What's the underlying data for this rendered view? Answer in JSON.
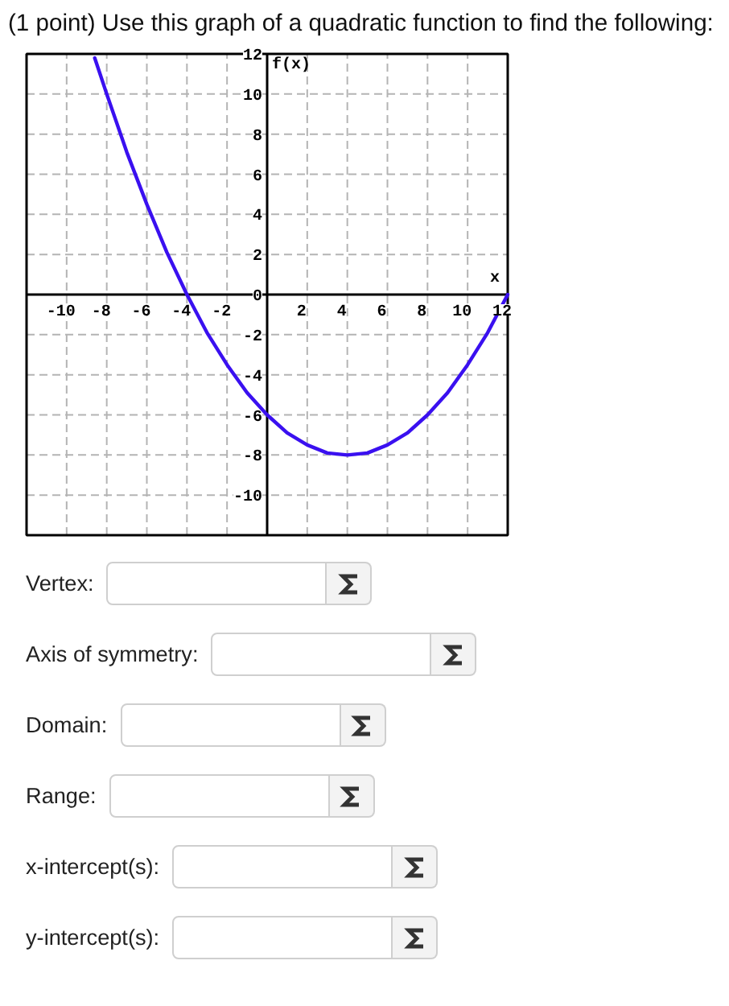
{
  "chart_data": {
    "type": "line",
    "title": "(1 point) Use this graph of a quadratic function to find the following:",
    "xlabel": "x",
    "ylabel": "f(x)",
    "x": [
      -8.6,
      -8,
      -7,
      -6,
      -5,
      -4,
      -3,
      -2,
      -1,
      0,
      1,
      2,
      3,
      4,
      5,
      6,
      7,
      8,
      9,
      10,
      11,
      12
    ],
    "series": [
      {
        "color": "#3a10f0",
        "values": [
          11.8,
          10,
          7.1,
          4.5,
          2.1,
          0,
          -1.9,
          -3.5,
          -4.9,
          -6,
          -6.9,
          -7.5,
          -7.9,
          -8,
          -7.9,
          -7.5,
          -6.9,
          -6,
          -4.9,
          -3.5,
          -1.9,
          0
        ]
      }
    ],
    "xlim": [
      -12,
      12
    ],
    "ylim": [
      -12,
      12
    ],
    "xticks": [
      -10,
      -8,
      -6,
      -4,
      -2,
      2,
      4,
      6,
      8,
      10,
      12
    ],
    "yticks": [
      -10,
      -8,
      -6,
      -4,
      -2,
      0,
      2,
      4,
      6,
      8,
      10,
      12
    ],
    "grid": true,
    "annotations": [
      "Vertex:",
      "Axis of symmetry:",
      "Domain:",
      "Range:",
      "x-intercept(s):",
      "y-intercept(s):"
    ]
  }
}
